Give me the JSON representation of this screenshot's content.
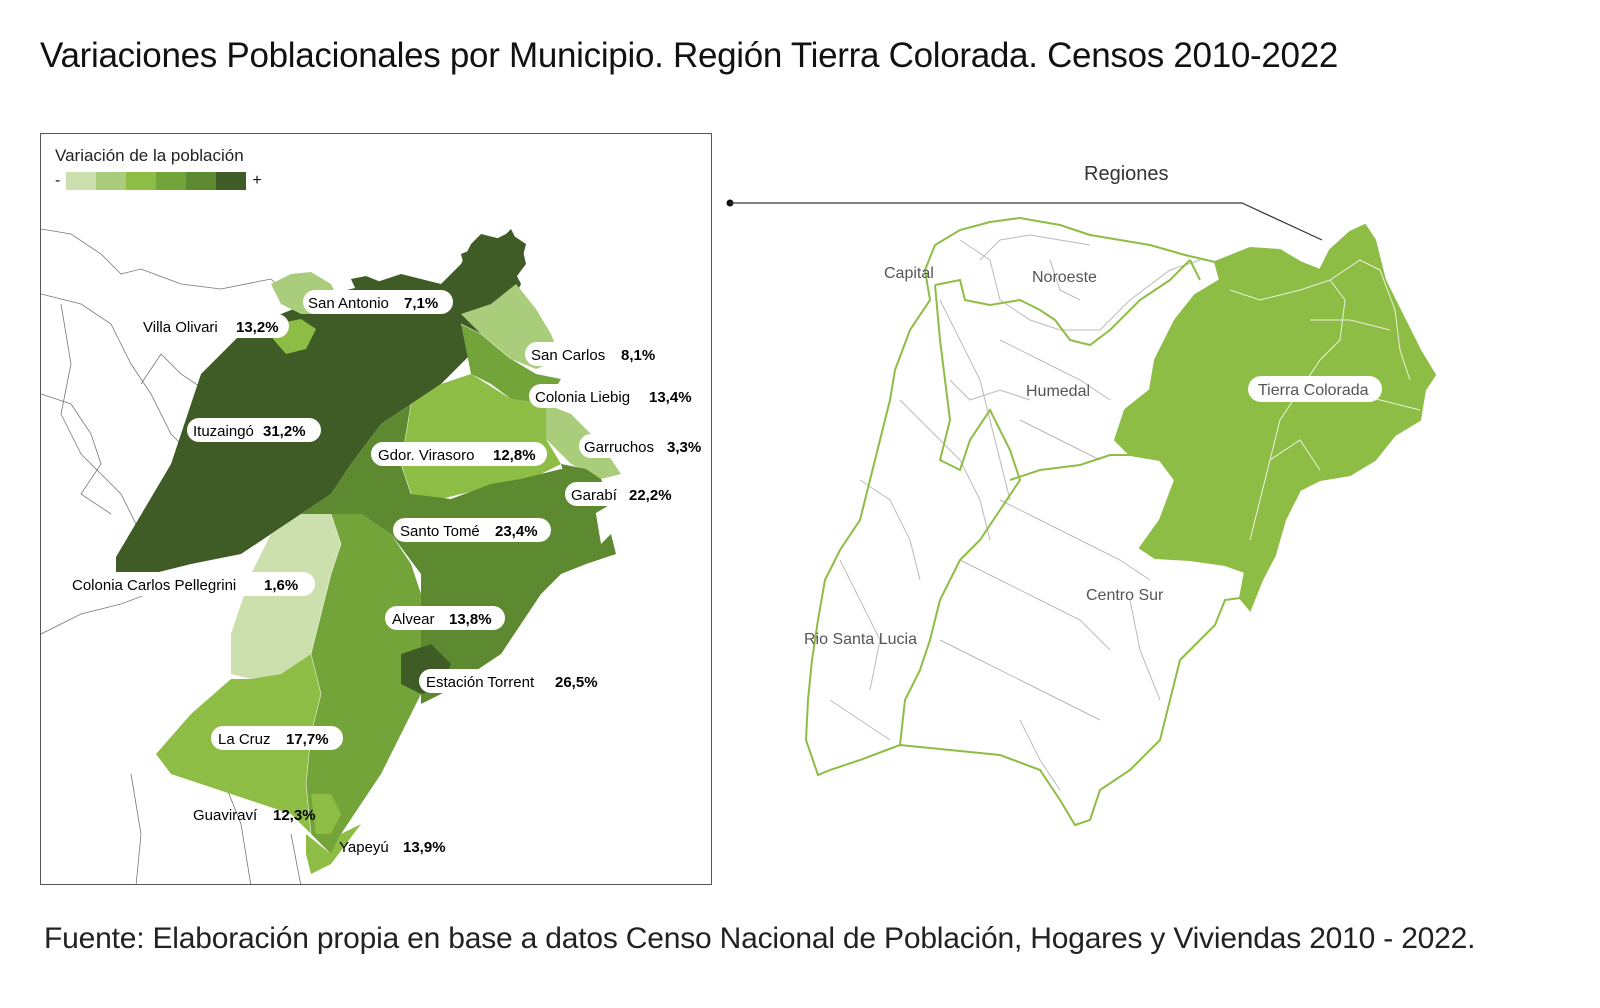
{
  "title": "Variaciones Poblacionales por Municipio. Región Tierra Colorada. Censos 2010-2022",
  "source": "Fuente: Elaboración propia en base a datos Censo Nacional de Población, Hogares y Viviendas 2010 - 2022.",
  "legend": {
    "title": "Variación de la población",
    "minus": "-",
    "plus": "+",
    "colors": [
      "#cce0ae",
      "#aacd7c",
      "#8dbd45",
      "#73a43a",
      "#5d8a30",
      "#3f5c26"
    ]
  },
  "municipalities": [
    {
      "name": "San Antonio",
      "value": "7,1%"
    },
    {
      "name": "Villa Olivari",
      "value": "13,2%"
    },
    {
      "name": "San Carlos",
      "value": "8,1%"
    },
    {
      "name": "Colonia Liebig",
      "value": "13,4%"
    },
    {
      "name": "Ituzaingó",
      "value": "31,2%"
    },
    {
      "name": "Garruchos",
      "value": "3,3%"
    },
    {
      "name": "Gdor. Virasoro",
      "value": "12,8%"
    },
    {
      "name": "Garabí",
      "value": "22,2%"
    },
    {
      "name": "Santo Tomé",
      "value": "23,4%"
    },
    {
      "name": "Colonia Carlos Pellegrini",
      "value": "1,6%"
    },
    {
      "name": "Alvear",
      "value": "13,8%"
    },
    {
      "name": "Estación Torrent",
      "value": "26,5%"
    },
    {
      "name": "La Cruz",
      "value": "17,7%"
    },
    {
      "name": "Guaviraví",
      "value": "12,3%"
    },
    {
      "name": "Yapeyú",
      "value": "13,9%"
    }
  ],
  "regions": {
    "header": "Regiones",
    "labels": [
      "Capital",
      "Noroeste",
      "Humedal",
      "Tierra Colorada",
      "Centro Sur",
      "Rio Santa Lucia"
    ],
    "highlight_color": "#8dbd45",
    "border_color": "#8dbd45"
  }
}
